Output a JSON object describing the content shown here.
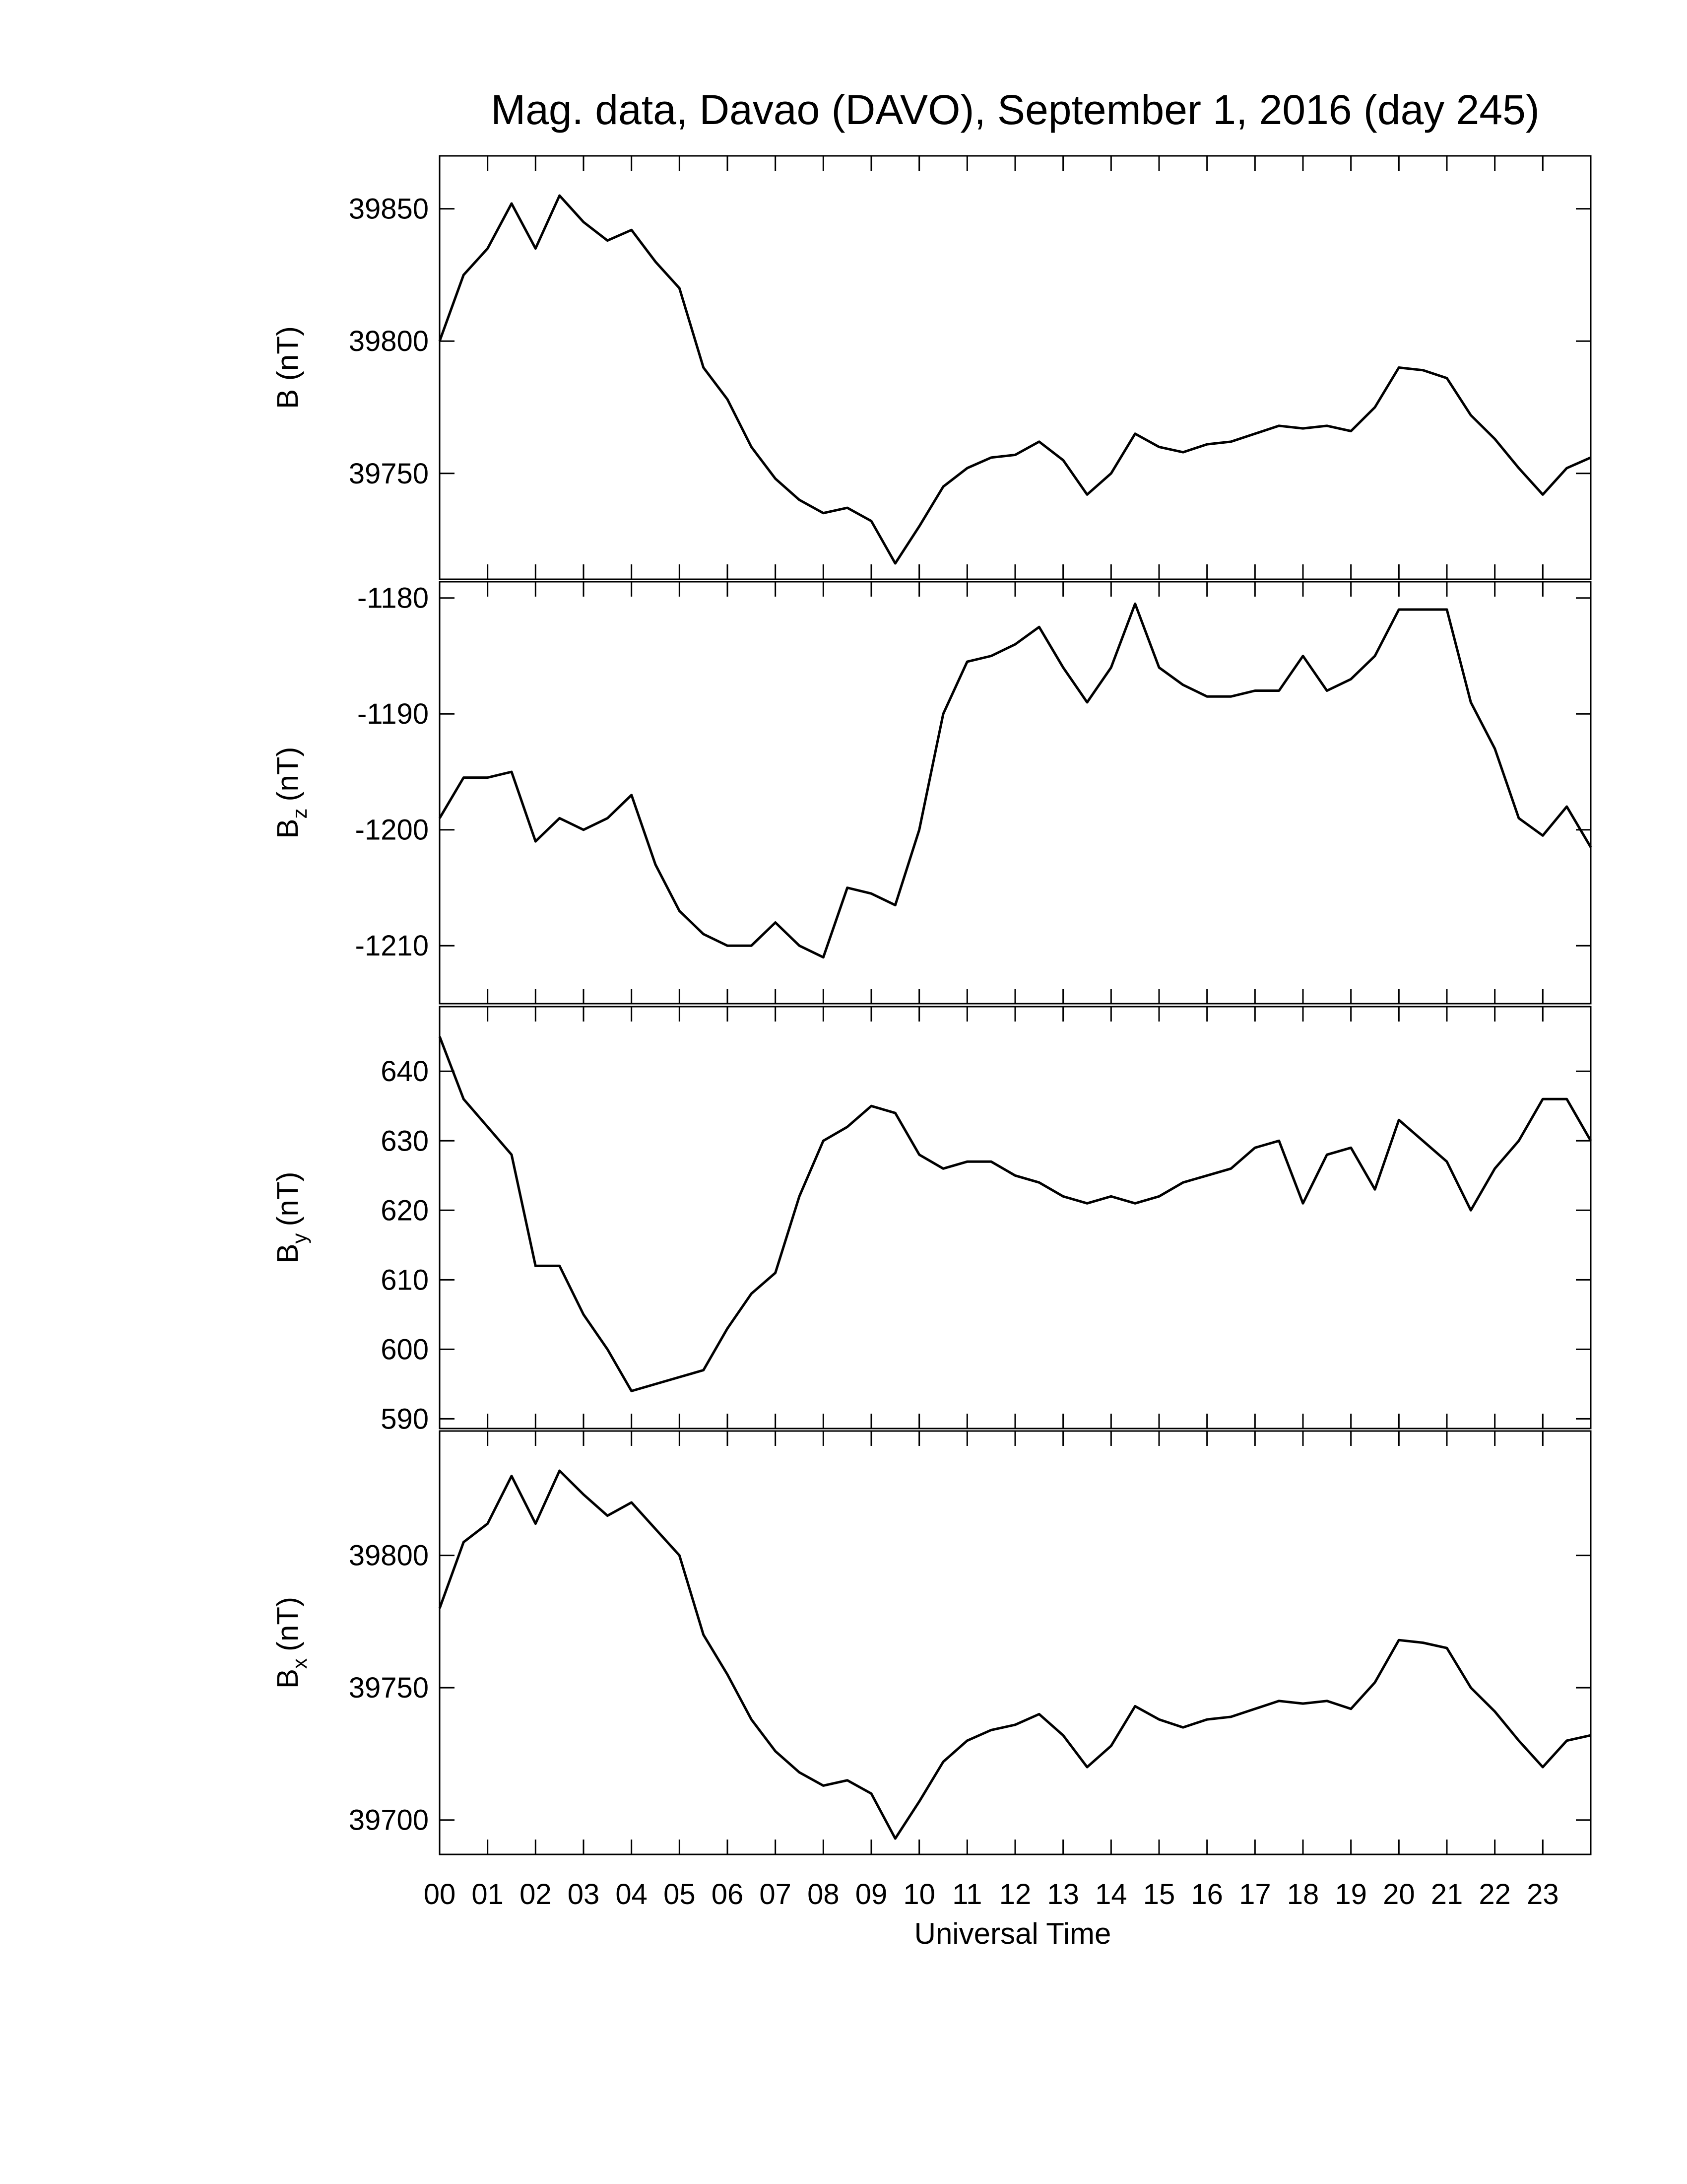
{
  "chart_data": [
    {
      "type": "line",
      "title": "Mag. data, Davao (DAVO), September 1, 2016 (day 245)",
      "ylabel": "B (nT)",
      "color": "#000000",
      "xlim": [
        0,
        24
      ],
      "ylim": [
        39710,
        39870
      ],
      "yticks": [
        39750,
        39800,
        39850
      ],
      "x": [
        0,
        0.5,
        1,
        1.5,
        2,
        2.5,
        3,
        3.5,
        4,
        4.5,
        5,
        5.5,
        6,
        6.5,
        7,
        7.5,
        8,
        8.5,
        9,
        9.5,
        10,
        10.5,
        11,
        11.5,
        12,
        12.5,
        13,
        13.5,
        14,
        14.5,
        15,
        15.5,
        16,
        16.5,
        17,
        17.5,
        18,
        18.5,
        19,
        19.5,
        20,
        20.5,
        21,
        21.5,
        22,
        22.5,
        23,
        23.5,
        24
      ],
      "values": [
        39800,
        39825,
        39835,
        39852,
        39835,
        39855,
        39845,
        39838,
        39842,
        39830,
        39820,
        39790,
        39778,
        39760,
        39748,
        39740,
        39735,
        39737,
        39732,
        39716,
        39730,
        39745,
        39752,
        39756,
        39757,
        39762,
        39755,
        39742,
        39750,
        39765,
        39760,
        39758,
        39761,
        39762,
        39765,
        39768,
        39767,
        39768,
        39766,
        39775,
        39790,
        39789,
        39786,
        39772,
        39763,
        39752,
        39742,
        39752,
        39756
      ]
    },
    {
      "type": "line",
      "ylabel": "B",
      "ylabel_sub": "z",
      "ylabel_unit": "(nT)",
      "color": "#000000",
      "xlim": [
        0,
        24
      ],
      "ylim": [
        -1215,
        -1178.6
      ],
      "yticks": [
        -1210,
        -1200,
        -1190,
        -1180
      ],
      "x": [
        0,
        0.5,
        1,
        1.5,
        2,
        2.5,
        3,
        3.5,
        4,
        4.5,
        5,
        5.5,
        6,
        6.5,
        7,
        7.5,
        8,
        8.5,
        9,
        9.5,
        10,
        10.5,
        11,
        11.5,
        12,
        12.5,
        13,
        13.5,
        14,
        14.5,
        15,
        15.5,
        16,
        16.5,
        17,
        17.5,
        18,
        18.5,
        19,
        19.5,
        20,
        20.5,
        21,
        21.5,
        22,
        22.5,
        23,
        23.5,
        24
      ],
      "values": [
        -1199,
        -1195.5,
        -1195.5,
        -1195,
        -1201,
        -1199,
        -1200,
        -1199,
        -1197,
        -1203,
        -1207,
        -1209,
        -1210,
        -1210,
        -1208,
        -1210,
        -1211,
        -1205,
        -1205.5,
        -1206.5,
        -1200,
        -1190,
        -1185.5,
        -1185,
        -1184,
        -1182.5,
        -1186,
        -1189,
        -1186,
        -1180.5,
        -1186,
        -1187.5,
        -1188.5,
        -1188.5,
        -1188,
        -1188,
        -1185,
        -1188,
        -1187,
        -1185,
        -1181,
        -1181,
        -1181,
        -1189,
        -1193,
        -1199,
        -1200.5,
        -1198,
        -1201.5
      ]
    },
    {
      "type": "line",
      "ylabel": "B",
      "ylabel_sub": "y",
      "ylabel_unit": "(nT)",
      "color": "#000000",
      "xlim": [
        0,
        24
      ],
      "ylim": [
        588.6,
        649.3
      ],
      "yticks": [
        590,
        600,
        610,
        620,
        630,
        640
      ],
      "x": [
        0,
        0.5,
        1,
        1.5,
        2,
        2.5,
        3,
        3.5,
        4,
        4.5,
        5,
        5.5,
        6,
        6.5,
        7,
        7.5,
        8,
        8.5,
        9,
        9.5,
        10,
        10.5,
        11,
        11.5,
        12,
        12.5,
        13,
        13.5,
        14,
        14.5,
        15,
        15.5,
        16,
        16.5,
        17,
        17.5,
        18,
        18.5,
        19,
        19.5,
        20,
        20.5,
        21,
        21.5,
        22,
        22.5,
        23,
        23.5,
        24
      ],
      "values": [
        645,
        636,
        632,
        628,
        612,
        612,
        605,
        600,
        594,
        595,
        596,
        597,
        603,
        608,
        611,
        622,
        630,
        632,
        635,
        634,
        628,
        626,
        627,
        627,
        625,
        624,
        622,
        621,
        622,
        621,
        622,
        624,
        625,
        626,
        629,
        630,
        621,
        628,
        629,
        623,
        633,
        630,
        627,
        620,
        626,
        630,
        636,
        636,
        630
      ]
    },
    {
      "type": "line",
      "ylabel": "B",
      "ylabel_sub": "x",
      "ylabel_unit": "(nT)",
      "xlabel": "Universal Time",
      "color": "#000000",
      "xlim": [
        0,
        24
      ],
      "ylim": [
        39687,
        39847
      ],
      "yticks": [
        39700,
        39750,
        39800
      ],
      "xticks": [
        {
          "value": 0,
          "label": "00"
        },
        {
          "value": 1,
          "label": "01"
        },
        {
          "value": 2,
          "label": "02"
        },
        {
          "value": 3,
          "label": "03"
        },
        {
          "value": 4,
          "label": "04"
        },
        {
          "value": 5,
          "label": "05"
        },
        {
          "value": 6,
          "label": "06"
        },
        {
          "value": 7,
          "label": "07"
        },
        {
          "value": 8,
          "label": "08"
        },
        {
          "value": 9,
          "label": "09"
        },
        {
          "value": 10,
          "label": "10"
        },
        {
          "value": 11,
          "label": "11"
        },
        {
          "value": 12,
          "label": "12"
        },
        {
          "value": 13,
          "label": "13"
        },
        {
          "value": 14,
          "label": "14"
        },
        {
          "value": 15,
          "label": "15"
        },
        {
          "value": 16,
          "label": "16"
        },
        {
          "value": 17,
          "label": "17"
        },
        {
          "value": 18,
          "label": "18"
        },
        {
          "value": 19,
          "label": "19"
        },
        {
          "value": 20,
          "label": "20"
        },
        {
          "value": 21,
          "label": "21"
        },
        {
          "value": 22,
          "label": "22"
        },
        {
          "value": 23,
          "label": "23"
        }
      ],
      "x": [
        0,
        0.5,
        1,
        1.5,
        2,
        2.5,
        3,
        3.5,
        4,
        4.5,
        5,
        5.5,
        6,
        6.5,
        7,
        7.5,
        8,
        8.5,
        9,
        9.5,
        10,
        10.5,
        11,
        11.5,
        12,
        12.5,
        13,
        13.5,
        14,
        14.5,
        15,
        15.5,
        16,
        16.5,
        17,
        17.5,
        18,
        18.5,
        19,
        19.5,
        20,
        20.5,
        21,
        21.5,
        22,
        22.5,
        23,
        23.5,
        24
      ],
      "values": [
        39780,
        39805,
        39812,
        39830,
        39812,
        39832,
        39823,
        39815,
        39820,
        39810,
        39800,
        39770,
        39755,
        39738,
        39726,
        39718,
        39713,
        39715,
        39710,
        39693,
        39707,
        39722,
        39730,
        39734,
        39736,
        39740,
        39732,
        39720,
        39728,
        39743,
        39738,
        39735,
        39738,
        39739,
        39742,
        39745,
        39744,
        39745,
        39742,
        39752,
        39768,
        39767,
        39765,
        39750,
        39741,
        39730,
        39720,
        39730,
        39732
      ]
    }
  ]
}
